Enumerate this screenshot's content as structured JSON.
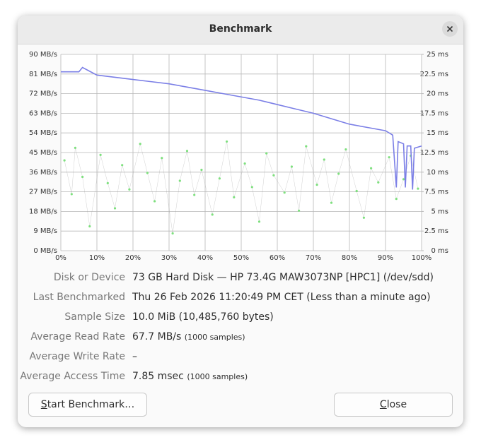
{
  "window": {
    "title": "Benchmark"
  },
  "chart_data": {
    "type": "line",
    "xlim": [
      0,
      100
    ],
    "xticks": [
      {
        "value": 0,
        "label": "0%"
      },
      {
        "value": 10,
        "label": "10%"
      },
      {
        "value": 20,
        "label": "20%"
      },
      {
        "value": 30,
        "label": "30%"
      },
      {
        "value": 40,
        "label": "40%"
      },
      {
        "value": 50,
        "label": "50%"
      },
      {
        "value": 60,
        "label": "60%"
      },
      {
        "value": 70,
        "label": "70%"
      },
      {
        "value": 80,
        "label": "80%"
      },
      {
        "value": 90,
        "label": "90%"
      },
      {
        "value": 100,
        "label": "100%"
      }
    ],
    "ylim": [
      0,
      90
    ],
    "yticks": [
      {
        "value": 0,
        "label": "0 MB/s"
      },
      {
        "value": 9,
        "label": "9 MB/s"
      },
      {
        "value": 18,
        "label": "18 MB/s"
      },
      {
        "value": 27,
        "label": "27 MB/s"
      },
      {
        "value": 36,
        "label": "36 MB/s"
      },
      {
        "value": 45,
        "label": "45 MB/s"
      },
      {
        "value": 54,
        "label": "54 MB/s"
      },
      {
        "value": 63,
        "label": "63 MB/s"
      },
      {
        "value": 72,
        "label": "72 MB/s"
      },
      {
        "value": 81,
        "label": "81 MB/s"
      },
      {
        "value": 90,
        "label": "90 MB/s"
      }
    ],
    "y2lim": [
      0,
      25
    ],
    "y2ticks": [
      {
        "value": 0,
        "label": "0 ms"
      },
      {
        "value": 2.5,
        "label": "2.5 ms"
      },
      {
        "value": 5,
        "label": "5 ms"
      },
      {
        "value": 7.5,
        "label": "7.5 ms"
      },
      {
        "value": 10,
        "label": "10 ms"
      },
      {
        "value": 12.5,
        "label": "12.5 ms"
      },
      {
        "value": 15,
        "label": "15 ms"
      },
      {
        "value": 17.5,
        "label": "17.5 ms"
      },
      {
        "value": 20,
        "label": "20 ms"
      },
      {
        "value": 22.5,
        "label": "22.5 ms"
      },
      {
        "value": 25,
        "label": "25 ms"
      }
    ],
    "grid": true,
    "series": [
      {
        "type": "line",
        "color": "#7b7fe6",
        "x": [
          0,
          5,
          6,
          10,
          15,
          20,
          25,
          30,
          35,
          40,
          45,
          50,
          55,
          60,
          65,
          70,
          75,
          80,
          85,
          90,
          92,
          93,
          93.5,
          95,
          95.5,
          96,
          97,
          97.5,
          98,
          100
        ],
        "values": [
          82,
          82,
          84,
          80.5,
          79.5,
          78.5,
          77.5,
          76.5,
          75,
          73.5,
          72,
          70.5,
          69,
          67,
          65,
          63,
          60.5,
          58,
          56.5,
          55,
          53,
          29,
          50,
          49,
          29,
          48,
          48,
          28,
          47,
          48
        ]
      },
      {
        "type": "scatter",
        "axis": "y2",
        "color": "#7ee07e",
        "x": [
          1,
          3,
          4,
          6,
          8,
          11,
          13,
          15,
          17,
          19,
          22,
          24,
          26,
          28,
          31,
          33,
          35,
          37,
          39,
          42,
          44,
          46,
          48,
          51,
          53,
          55,
          57,
          59,
          62,
          64,
          66,
          68,
          71,
          73,
          75,
          77,
          79,
          82,
          84,
          86,
          88,
          91,
          93,
          95,
          97,
          99
        ],
        "values": [
          11.5,
          7.2,
          13.1,
          9.4,
          3.1,
          12.2,
          8.6,
          5.4,
          10.9,
          7.8,
          13.6,
          9.9,
          6.3,
          11.8,
          2.2,
          8.9,
          12.7,
          7.1,
          10.3,
          4.6,
          9.2,
          13.9,
          6.8,
          11.1,
          8.1,
          3.7,
          12.4,
          9.6,
          7.4,
          10.7,
          5.1,
          13.3,
          8.4,
          11.6,
          6.1,
          9.8,
          12.9,
          7.6,
          4.2,
          10.5,
          8.7,
          11.9,
          6.6,
          9.1,
          12.1,
          7.9
        ]
      }
    ]
  },
  "info": [
    {
      "label": "Disk or Device",
      "value": "73 GB Hard Disk — HP 73.4G MAW3073NP [HPC1] (/dev/sdd)"
    },
    {
      "label": "Last Benchmarked",
      "value": "Thu 26 Feb 2026 11:20:49 PM CET (Less than a minute ago)"
    },
    {
      "label": "Sample Size",
      "value": "10.0 MiB (10,485,760 bytes)"
    },
    {
      "label": "Average Read Rate",
      "value": "67.7 MB/s",
      "note": "(1000 samples)"
    },
    {
      "label": "Average Write Rate",
      "value": "–"
    },
    {
      "label": "Average Access Time",
      "value": "7.85 msec",
      "note": "(1000 samples)"
    }
  ],
  "buttons": {
    "start": "Start Benchmark…",
    "close": "Close"
  }
}
